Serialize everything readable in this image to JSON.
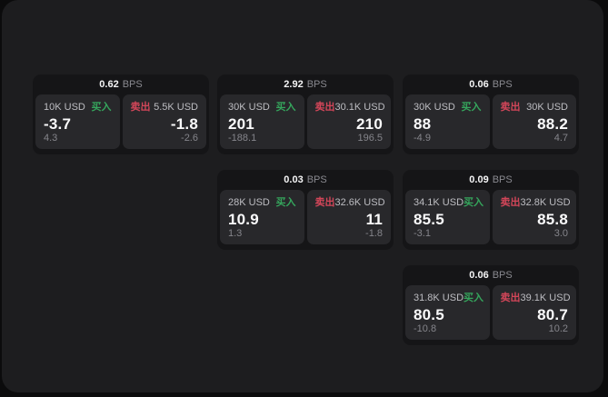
{
  "labels": {
    "bps_unit": "BPS",
    "buy": "买入",
    "sell": "卖出"
  },
  "colors": {
    "buy-green": "#35a55c",
    "sell-red": "#d34659"
  },
  "cards": [
    {
      "bps": "0.62",
      "buy": {
        "amount": "10K USD",
        "value": "-3.7",
        "change": "4.3"
      },
      "sell": {
        "amount": "5.5K USD",
        "value": "-1.8",
        "change": "-2.6"
      }
    },
    {
      "bps": "2.92",
      "buy": {
        "amount": "30K USD",
        "value": "201",
        "change": "-188.1"
      },
      "sell": {
        "amount": "30.1K USD",
        "value": "210",
        "change": "196.5"
      }
    },
    {
      "bps": "0.03",
      "buy": {
        "amount": "28K USD",
        "value": "10.9",
        "change": "1.3"
      },
      "sell": {
        "amount": "32.6K USD",
        "value": "11",
        "change": "-1.8"
      }
    },
    {
      "bps": "0.06",
      "buy": {
        "amount": "30K USD",
        "value": "88",
        "change": "-4.9"
      },
      "sell": {
        "amount": "30K USD",
        "value": "88.2",
        "change": "4.7"
      }
    },
    {
      "bps": "0.09",
      "buy": {
        "amount": "34.1K USD",
        "value": "85.5",
        "change": "-3.1"
      },
      "sell": {
        "amount": "32.8K USD",
        "value": "85.8",
        "change": "3.0"
      }
    },
    {
      "bps": "0.06",
      "buy": {
        "amount": "31.8K USD",
        "value": "80.5",
        "change": "-10.8"
      },
      "sell": {
        "amount": "39.1K USD",
        "value": "80.7",
        "change": "10.2"
      }
    }
  ]
}
